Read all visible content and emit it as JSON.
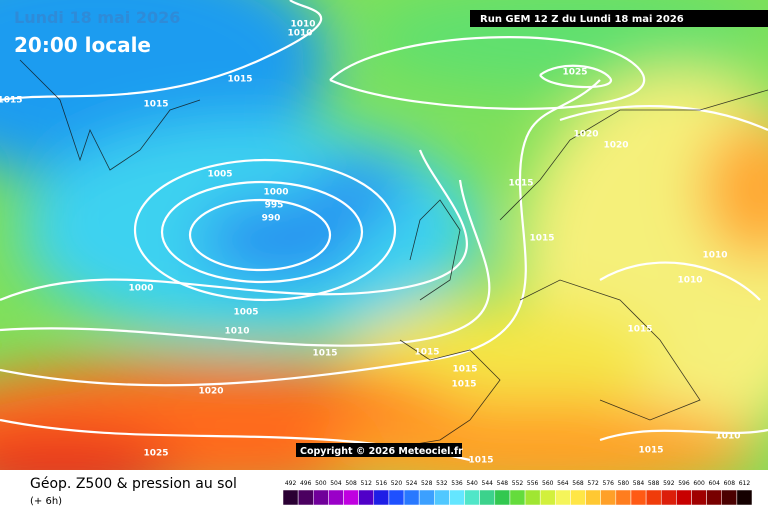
{
  "header": {
    "date": "Lundi 18 mai 2026",
    "time": "20:00 locale",
    "run": "Run GEM 12 Z du Lundi 18 mai 2026"
  },
  "copyright": "Copyright © 2026 Meteociel.fr",
  "footer": {
    "title": "Géop. Z500 & pression au sol",
    "lead": "(+ 6h)"
  },
  "isobar_labels": [
    "1010",
    "1010",
    "1015",
    "1015",
    "1015",
    "1025",
    "1020",
    "1020",
    "1005",
    "1015",
    "1000",
    "995",
    "990",
    "1015",
    "1010",
    "1010",
    "1000",
    "1005",
    "1010",
    "1015",
    "1015",
    "1015",
    "1015",
    "1015",
    "1020",
    "1010",
    "1015",
    "1025",
    "1015"
  ],
  "legend": {
    "labels": [
      "492",
      "496",
      "500",
      "504",
      "508",
      "512",
      "516",
      "520",
      "524",
      "528",
      "532",
      "536",
      "540",
      "544",
      "548",
      "552",
      "556",
      "560",
      "564",
      "568",
      "572",
      "576",
      "580",
      "584",
      "588",
      "592",
      "596",
      "600",
      "604",
      "608",
      "612"
    ],
    "colors": [
      "#2a0033",
      "#4b0060",
      "#70009a",
      "#9a00c8",
      "#c000e0",
      "#5000c8",
      "#1e1ee6",
      "#1e50ff",
      "#2878ff",
      "#3ca0ff",
      "#50c8ff",
      "#64e6ff",
      "#50e6c8",
      "#3cd28c",
      "#32c850",
      "#64dc3c",
      "#a0e632",
      "#d2f03c",
      "#f5f55a",
      "#ffe646",
      "#ffc832",
      "#ffa028",
      "#ff7d1e",
      "#ff5a14",
      "#f03c0a",
      "#dc1e0a",
      "#c80000",
      "#a00000",
      "#780000",
      "#4b0000",
      "#140000"
    ]
  }
}
